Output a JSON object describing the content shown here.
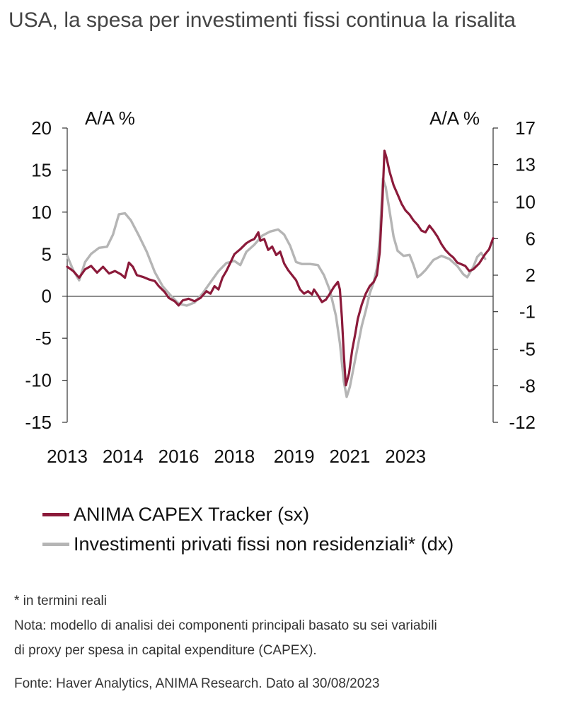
{
  "title": "USA, la spesa per investimenti fissi continua la risalita",
  "chart_data": {
    "type": "line",
    "title": "USA, la spesa per investimenti fissi continua la risalita",
    "left_axis": {
      "label": "A/A %",
      "min": -15,
      "max": 20,
      "ticks": [
        "20",
        "15",
        "10",
        "5",
        "0",
        "-5",
        "-10",
        "-15"
      ],
      "tick_values": [
        20,
        15,
        10,
        5,
        0,
        -5,
        -10,
        -15
      ]
    },
    "right_axis": {
      "label": "A/A %",
      "min": -12,
      "max": 17,
      "ticks": [
        "17",
        "13",
        "10",
        "6",
        "2",
        "-1",
        "-5",
        "-8",
        "-12"
      ],
      "tick_values": [
        17,
        13.4,
        9.7,
        6.1,
        2.5,
        -1.1,
        -4.8,
        -8.4,
        -12
      ]
    },
    "x_axis": {
      "min": 2013.0,
      "max": 2023.7,
      "tick_labels": [
        "2013",
        "2014",
        "2016",
        "2018",
        "2019",
        "2021",
        "2023"
      ],
      "tick_positions": [
        2013.0,
        2014.4,
        2015.8,
        2017.2,
        2018.7,
        2020.1,
        2021.5
      ]
    },
    "series": [
      {
        "name": "ANIMA CAPEX Tracker (sx)",
        "axis": "left",
        "color": "#8b1a3a",
        "points": [
          [
            2013.0,
            3.5
          ],
          [
            2013.15,
            3.0
          ],
          [
            2013.3,
            2.2
          ],
          [
            2013.45,
            3.2
          ],
          [
            2013.6,
            3.6
          ],
          [
            2013.75,
            2.8
          ],
          [
            2013.9,
            3.5
          ],
          [
            2014.05,
            2.7
          ],
          [
            2014.2,
            3.0
          ],
          [
            2014.35,
            2.6
          ],
          [
            2014.45,
            2.2
          ],
          [
            2014.55,
            4.0
          ],
          [
            2014.65,
            3.5
          ],
          [
            2014.75,
            2.5
          ],
          [
            2014.9,
            2.3
          ],
          [
            2015.05,
            2.0
          ],
          [
            2015.2,
            1.8
          ],
          [
            2015.3,
            1.2
          ],
          [
            2015.45,
            0.5
          ],
          [
            2015.55,
            -0.2
          ],
          [
            2015.7,
            -0.6
          ],
          [
            2015.8,
            -1.1
          ],
          [
            2015.9,
            -0.5
          ],
          [
            2016.05,
            -0.3
          ],
          [
            2016.2,
            -0.6
          ],
          [
            2016.35,
            -0.2
          ],
          [
            2016.5,
            0.6
          ],
          [
            2016.6,
            0.3
          ],
          [
            2016.7,
            1.2
          ],
          [
            2016.8,
            0.8
          ],
          [
            2016.9,
            2.2
          ],
          [
            2017.0,
            3.0
          ],
          [
            2017.1,
            4.0
          ],
          [
            2017.2,
            5.0
          ],
          [
            2017.35,
            5.6
          ],
          [
            2017.5,
            6.3
          ],
          [
            2017.6,
            6.6
          ],
          [
            2017.7,
            6.8
          ],
          [
            2017.8,
            7.6
          ],
          [
            2017.85,
            6.6
          ],
          [
            2017.95,
            6.8
          ],
          [
            2018.05,
            5.5
          ],
          [
            2018.15,
            5.9
          ],
          [
            2018.25,
            4.9
          ],
          [
            2018.35,
            5.3
          ],
          [
            2018.45,
            3.9
          ],
          [
            2018.55,
            3.1
          ],
          [
            2018.65,
            2.5
          ],
          [
            2018.75,
            1.9
          ],
          [
            2018.85,
            0.8
          ],
          [
            2018.95,
            0.3
          ],
          [
            2019.05,
            0.6
          ],
          [
            2019.15,
            0.2
          ],
          [
            2019.2,
            0.8
          ],
          [
            2019.3,
            0.1
          ],
          [
            2019.4,
            -0.7
          ],
          [
            2019.5,
            -0.4
          ],
          [
            2019.6,
            0.3
          ],
          [
            2019.7,
            1.1
          ],
          [
            2019.8,
            1.7
          ],
          [
            2019.85,
            0.8
          ],
          [
            2019.9,
            -2.5
          ],
          [
            2019.95,
            -7.0
          ],
          [
            2020.0,
            -10.6
          ],
          [
            2020.08,
            -9.2
          ],
          [
            2020.16,
            -6.4
          ],
          [
            2020.24,
            -4.4
          ],
          [
            2020.3,
            -2.7
          ],
          [
            2020.4,
            -1.0
          ],
          [
            2020.5,
            0.3
          ],
          [
            2020.6,
            1.2
          ],
          [
            2020.7,
            1.7
          ],
          [
            2020.78,
            2.5
          ],
          [
            2020.85,
            5.2
          ],
          [
            2020.92,
            11.5
          ],
          [
            2020.97,
            17.3
          ],
          [
            2021.02,
            16.5
          ],
          [
            2021.1,
            14.8
          ],
          [
            2021.2,
            13.2
          ],
          [
            2021.3,
            12.1
          ],
          [
            2021.4,
            11.0
          ],
          [
            2021.5,
            10.2
          ],
          [
            2021.6,
            9.7
          ],
          [
            2021.7,
            9.0
          ],
          [
            2021.8,
            8.5
          ],
          [
            2021.9,
            7.8
          ],
          [
            2022.0,
            7.6
          ],
          [
            2022.1,
            8.4
          ],
          [
            2022.2,
            7.8
          ],
          [
            2022.3,
            7.1
          ],
          [
            2022.4,
            6.2
          ],
          [
            2022.5,
            5.5
          ],
          [
            2022.6,
            5.0
          ],
          [
            2022.7,
            4.6
          ],
          [
            2022.8,
            4.0
          ],
          [
            2022.9,
            3.8
          ],
          [
            2023.0,
            3.6
          ],
          [
            2023.1,
            3.0
          ],
          [
            2023.2,
            3.2
          ],
          [
            2023.35,
            3.9
          ],
          [
            2023.5,
            5.0
          ],
          [
            2023.6,
            5.6
          ],
          [
            2023.7,
            6.9
          ]
        ]
      },
      {
        "name": "Investimenti privati fissi non residenziali* (dx)",
        "axis": "right",
        "color": "#b5b5b5",
        "points": [
          [
            2013.0,
            4.4
          ],
          [
            2013.15,
            3.0
          ],
          [
            2013.3,
            2.0
          ],
          [
            2013.45,
            3.8
          ],
          [
            2013.6,
            4.6
          ],
          [
            2013.8,
            5.2
          ],
          [
            2014.0,
            5.3
          ],
          [
            2014.15,
            6.5
          ],
          [
            2014.3,
            8.5
          ],
          [
            2014.45,
            8.6
          ],
          [
            2014.6,
            7.9
          ],
          [
            2014.8,
            6.4
          ],
          [
            2015.0,
            4.8
          ],
          [
            2015.2,
            2.8
          ],
          [
            2015.4,
            1.4
          ],
          [
            2015.6,
            0.5
          ],
          [
            2015.8,
            -0.3
          ],
          [
            2016.0,
            -0.5
          ],
          [
            2016.2,
            -0.2
          ],
          [
            2016.4,
            0.7
          ],
          [
            2016.6,
            1.8
          ],
          [
            2016.8,
            2.9
          ],
          [
            2017.0,
            3.7
          ],
          [
            2017.2,
            3.9
          ],
          [
            2017.35,
            3.5
          ],
          [
            2017.5,
            4.8
          ],
          [
            2017.7,
            5.5
          ],
          [
            2017.9,
            6.4
          ],
          [
            2018.1,
            6.8
          ],
          [
            2018.3,
            7.0
          ],
          [
            2018.45,
            6.5
          ],
          [
            2018.6,
            5.4
          ],
          [
            2018.75,
            3.8
          ],
          [
            2018.9,
            3.6
          ],
          [
            2019.1,
            3.6
          ],
          [
            2019.3,
            3.5
          ],
          [
            2019.45,
            2.5
          ],
          [
            2019.6,
            1.0
          ],
          [
            2019.75,
            -1.5
          ],
          [
            2019.85,
            -4.2
          ],
          [
            2019.95,
            -8.0
          ],
          [
            2020.02,
            -9.5
          ],
          [
            2020.1,
            -8.5
          ],
          [
            2020.2,
            -6.5
          ],
          [
            2020.3,
            -4.5
          ],
          [
            2020.4,
            -2.5
          ],
          [
            2020.5,
            -1.0
          ],
          [
            2020.6,
            0.7
          ],
          [
            2020.7,
            1.8
          ],
          [
            2020.78,
            3.2
          ],
          [
            2020.85,
            6.0
          ],
          [
            2020.93,
            12.0
          ],
          [
            2021.0,
            11.2
          ],
          [
            2021.1,
            8.8
          ],
          [
            2021.2,
            6.3
          ],
          [
            2021.3,
            4.9
          ],
          [
            2021.45,
            4.4
          ],
          [
            2021.6,
            4.5
          ],
          [
            2021.7,
            3.5
          ],
          [
            2021.8,
            2.3
          ],
          [
            2021.9,
            2.6
          ],
          [
            2022.0,
            3.0
          ],
          [
            2022.2,
            4.0
          ],
          [
            2022.4,
            4.4
          ],
          [
            2022.6,
            4.1
          ],
          [
            2022.8,
            3.4
          ],
          [
            2022.95,
            2.6
          ],
          [
            2023.05,
            2.3
          ],
          [
            2023.2,
            3.3
          ],
          [
            2023.3,
            4.3
          ],
          [
            2023.4,
            4.7
          ],
          [
            2023.5,
            4.1
          ]
        ]
      }
    ]
  },
  "legend": [
    {
      "label": "ANIMA CAPEX Tracker (sx)",
      "color": "#8b1a3a"
    },
    {
      "label": "Investimenti privati fissi non residenziali* (dx)",
      "color": "#b5b5b5"
    }
  ],
  "footnote": "* in termini reali",
  "note_line1": "Nota: modello di analisi dei componenti principali basato su sei variabili",
  "note_line2": "di proxy per spesa in capital expenditure (CAPEX).",
  "source": "Fonte: Haver Analytics, ANIMA Research. Dato al 30/08/2023"
}
